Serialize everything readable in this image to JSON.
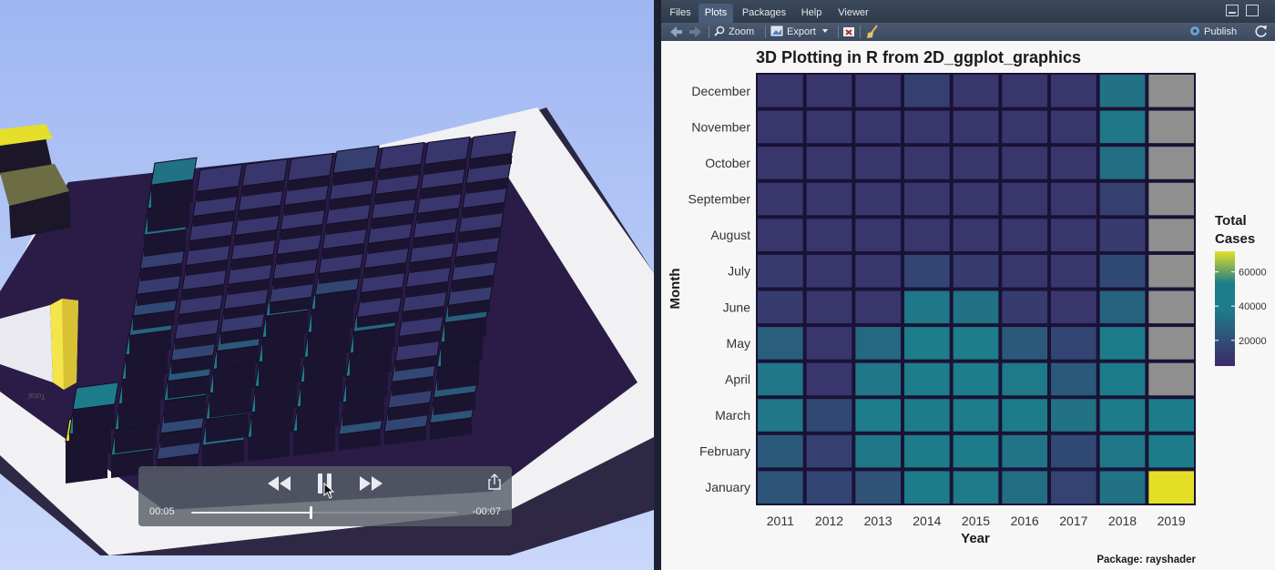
{
  "video": {
    "elapsed": "00:05",
    "remaining": "-00:07",
    "progress": 0.45
  },
  "rstudio": {
    "tabs": [
      {
        "label": "Files",
        "active": false
      },
      {
        "label": "Plots",
        "active": true
      },
      {
        "label": "Packages",
        "active": false
      },
      {
        "label": "Help",
        "active": false
      },
      {
        "label": "Viewer",
        "active": false
      }
    ],
    "toolbar": {
      "zoom_label": "Zoom",
      "export_label": "Export",
      "publish_label": "Publish"
    }
  },
  "colors": {
    "low": "#3e2a68",
    "mid": "#1d7d8a",
    "high": "#e3df26",
    "na": "#8f8f8f",
    "cell_border": "#1a1236"
  },
  "chart_data": {
    "type": "heatmap",
    "title": "3D Plotting in R from 2D_ggplot_graphics",
    "xlabel": "Year",
    "ylabel": "Month",
    "caption": "Package: rayshader",
    "legend": {
      "title": "Total\nCases",
      "title_lines": [
        "Total",
        "Cases"
      ],
      "ticks": [
        20000,
        40000,
        60000
      ],
      "tick_labels": [
        "20000",
        "40000",
        "60000"
      ],
      "range": [
        5000,
        72000
      ],
      "placement": "right"
    },
    "x": [
      "2011",
      "2012",
      "2013",
      "2014",
      "2015",
      "2016",
      "2017",
      "2018",
      "2019"
    ],
    "y": [
      "January",
      "February",
      "March",
      "April",
      "May",
      "June",
      "July",
      "August",
      "September",
      "October",
      "November",
      "December"
    ],
    "values": [
      [
        22000,
        16000,
        21000,
        38000,
        37000,
        32000,
        15000,
        34000,
        72000
      ],
      [
        24000,
        14000,
        36000,
        38000,
        38000,
        35000,
        18000,
        36000,
        38000
      ],
      [
        36000,
        17000,
        39000,
        38000,
        40000,
        38000,
        34000,
        38000,
        38000
      ],
      [
        36000,
        10000,
        36000,
        39000,
        40000,
        37000,
        24000,
        38000,
        null
      ],
      [
        26000,
        10000,
        30000,
        39000,
        40000,
        24000,
        16000,
        38000,
        null
      ],
      [
        12000,
        10000,
        10000,
        36000,
        34000,
        12000,
        10000,
        28000,
        null
      ],
      [
        12000,
        10000,
        10000,
        16000,
        12000,
        10000,
        10000,
        18000,
        null
      ],
      [
        10000,
        10000,
        10000,
        10000,
        10000,
        10000,
        10000,
        12000,
        null
      ],
      [
        10000,
        10000,
        10000,
        10000,
        10000,
        10000,
        10000,
        14000,
        null
      ],
      [
        10000,
        10000,
        10000,
        10000,
        10000,
        10000,
        10000,
        32000,
        null
      ],
      [
        10000,
        10000,
        10000,
        10000,
        10000,
        10000,
        10000,
        36000,
        null
      ],
      [
        10000,
        10000,
        10000,
        14000,
        10000,
        10000,
        10000,
        34000,
        null
      ]
    ],
    "grid": false
  }
}
